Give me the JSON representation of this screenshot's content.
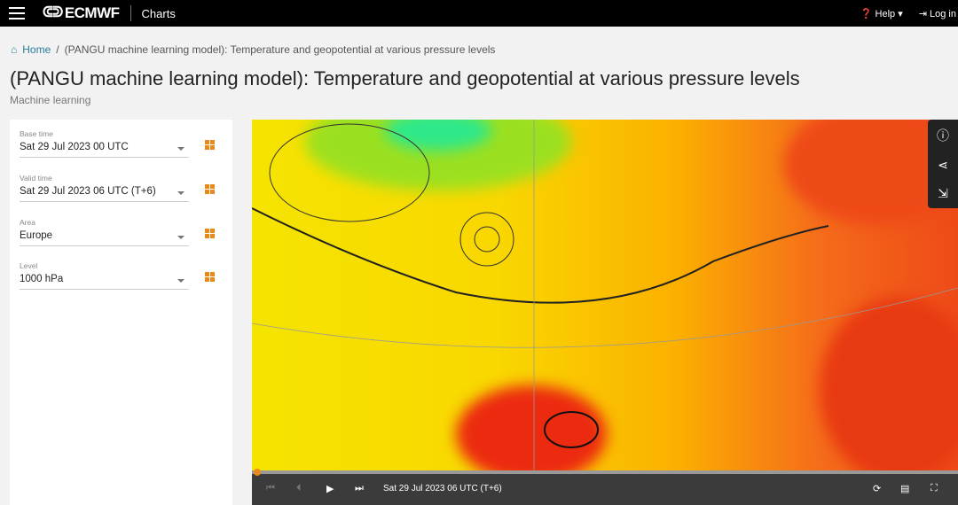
{
  "header": {
    "brand": "ECMWF",
    "section": "Charts",
    "help": "Help",
    "login": "Log in"
  },
  "breadcrumb": {
    "home": "Home",
    "current": "(PANGU machine learning model): Temperature and geopotential at various pressure levels"
  },
  "page": {
    "title": "(PANGU machine learning model): Temperature and geopotential at various pressure levels",
    "subtitle": "Machine learning"
  },
  "fields": [
    {
      "label": "Base time",
      "value": "Sat 29 Jul 2023 00 UTC"
    },
    {
      "label": "Valid time",
      "value": "Sat 29 Jul 2023 06 UTC (T+6)"
    },
    {
      "label": "Area",
      "value": "Europe"
    },
    {
      "label": "Level",
      "value": "1000 hPa"
    }
  ],
  "player": {
    "time": "Sat 29 Jul 2023 06 UTC (T+6)",
    "progress": 0
  },
  "colors": {
    "accent": "#e8891c",
    "link": "#2a7c9c"
  }
}
